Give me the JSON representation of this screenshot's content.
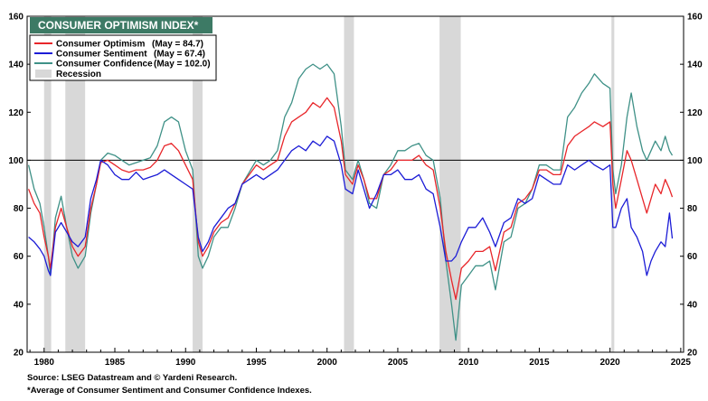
{
  "title": "CONSUMER OPTIMISM INDEX*",
  "footer": {
    "source": "Source: LSEG Datastream and © Yardeni Research.",
    "note": "*Average of Consumer Sentiment and Consumer Confidence Indexes."
  },
  "colors": {
    "title_bg": "#3d7a65",
    "optimism": "#e8262a",
    "sentiment": "#1c1cd6",
    "confidence": "#3f9187",
    "recession": "#d8d8d8",
    "reference_line": "#000000"
  },
  "chart_data": {
    "type": "line",
    "title": "CONSUMER OPTIMISM INDEX*",
    "xlim": [
      1978.8,
      2025.2
    ],
    "ylim": [
      20,
      160
    ],
    "x_ticks": [
      1980,
      1985,
      1990,
      1995,
      2000,
      2005,
      2010,
      2015,
      2020,
      2025
    ],
    "y_ticks": [
      20,
      40,
      60,
      80,
      100,
      120,
      140,
      160
    ],
    "reference_line_y": 100,
    "grid": false,
    "legend_position": "top-left",
    "recessions": [
      [
        1980.0,
        1980.5
      ],
      [
        1981.5,
        1982.9
      ],
      [
        1990.5,
        1991.2
      ],
      [
        2001.2,
        2001.9
      ],
      [
        2007.95,
        2009.45
      ],
      [
        2020.1,
        2020.3
      ]
    ],
    "legend": [
      {
        "label": "Consumer Optimism",
        "value": "(May = 84.7)",
        "color": "#e8262a"
      },
      {
        "label": "Consumer Sentiment",
        "value": "(May = 67.4)",
        "color": "#1c1cd6"
      },
      {
        "label": "Consumer Confidence",
        "value": "(May = 102.0)",
        "color": "#3f9187"
      },
      {
        "label": "Recession",
        "value": "",
        "color": "#d8d8d8"
      }
    ],
    "series": [
      {
        "name": "Consumer Confidence",
        "color": "#3f9187",
        "x": [
          1978.9,
          1979.3,
          1979.7,
          1980.0,
          1980.3,
          1980.45,
          1980.8,
          1981.2,
          1981.6,
          1982.0,
          1982.4,
          1982.9,
          1983.3,
          1983.7,
          1984.0,
          1984.5,
          1985.0,
          1985.5,
          1986.0,
          1986.5,
          1987.0,
          1987.5,
          1988.0,
          1988.5,
          1989.0,
          1989.5,
          1990.0,
          1990.5,
          1990.9,
          1991.2,
          1991.6,
          1992.0,
          1992.5,
          1993.0,
          1993.5,
          1994.0,
          1994.5,
          1995.0,
          1995.5,
          1996.0,
          1996.5,
          1997.0,
          1997.5,
          1998.0,
          1998.5,
          1999.0,
          1999.5,
          2000.0,
          2000.5,
          2001.0,
          2001.3,
          2001.8,
          2002.2,
          2002.6,
          2003.0,
          2003.5,
          2004.0,
          2004.5,
          2005.0,
          2005.5,
          2006.0,
          2006.5,
          2007.0,
          2007.5,
          2008.0,
          2008.4,
          2008.8,
          2009.1,
          2009.5,
          2010.0,
          2010.5,
          2011.0,
          2011.5,
          2011.9,
          2012.5,
          2013.0,
          2013.5,
          2014.0,
          2014.5,
          2015.0,
          2015.5,
          2016.0,
          2016.5,
          2017.0,
          2017.5,
          2018.0,
          2018.5,
          2018.9,
          2019.5,
          2020.0,
          2020.2,
          2020.4,
          2020.8,
          2021.2,
          2021.5,
          2021.9,
          2022.3,
          2022.6,
          2022.9,
          2023.2,
          2023.6,
          2023.9,
          2024.2,
          2024.4
        ],
        "values": [
          98,
          88,
          82,
          72,
          60,
          52,
          76,
          85,
          72,
          60,
          55,
          60,
          78,
          90,
          100,
          103,
          102,
          100,
          98,
          99,
          100,
          101,
          106,
          116,
          118,
          116,
          104,
          96,
          60,
          55,
          60,
          68,
          72,
          72,
          80,
          90,
          95,
          100,
          98,
          100,
          104,
          118,
          124,
          134,
          138,
          140,
          138,
          140,
          136,
          114,
          96,
          92,
          100,
          92,
          82,
          80,
          94,
          98,
          104,
          104,
          106,
          107,
          102,
          100,
          84,
          58,
          40,
          25,
          48,
          52,
          56,
          56,
          58,
          46,
          66,
          68,
          80,
          82,
          88,
          98,
          98,
          96,
          96,
          118,
          122,
          128,
          132,
          136,
          132,
          130,
          96,
          86,
          98,
          118,
          128,
          114,
          104,
          100,
          104,
          108,
          104,
          110,
          104,
          102
        ]
      },
      {
        "name": "Consumer Optimism",
        "color": "#e8262a",
        "x": [
          1978.9,
          1979.3,
          1979.7,
          1980.0,
          1980.3,
          1980.45,
          1980.8,
          1981.2,
          1981.6,
          1982.0,
          1982.4,
          1982.9,
          1983.3,
          1983.7,
          1984.0,
          1984.5,
          1985.0,
          1985.5,
          1986.0,
          1986.5,
          1987.0,
          1987.5,
          1988.0,
          1988.5,
          1989.0,
          1989.5,
          1990.0,
          1990.5,
          1990.9,
          1991.2,
          1991.6,
          1992.0,
          1992.5,
          1993.0,
          1993.5,
          1994.0,
          1994.5,
          1995.0,
          1995.5,
          1996.0,
          1996.5,
          1997.0,
          1997.5,
          1998.0,
          1998.5,
          1999.0,
          1999.5,
          2000.0,
          2000.5,
          2001.0,
          2001.3,
          2001.8,
          2002.2,
          2002.6,
          2003.0,
          2003.5,
          2004.0,
          2004.5,
          2005.0,
          2005.5,
          2006.0,
          2006.5,
          2007.0,
          2007.5,
          2008.0,
          2008.4,
          2008.8,
          2009.1,
          2009.5,
          2010.0,
          2010.5,
          2011.0,
          2011.5,
          2011.9,
          2012.5,
          2013.0,
          2013.5,
          2014.0,
          2014.5,
          2015.0,
          2015.5,
          2016.0,
          2016.5,
          2017.0,
          2017.5,
          2018.0,
          2018.5,
          2018.9,
          2019.5,
          2020.0,
          2020.2,
          2020.4,
          2020.8,
          2021.2,
          2021.5,
          2021.9,
          2022.3,
          2022.6,
          2022.9,
          2023.2,
          2023.6,
          2023.9,
          2024.2,
          2024.4
        ],
        "values": [
          88,
          82,
          78,
          68,
          60,
          55,
          72,
          80,
          72,
          64,
          60,
          64,
          80,
          90,
          99,
          100,
          98,
          96,
          95,
          96,
          96,
          97,
          100,
          106,
          107,
          104,
          98,
          92,
          66,
          60,
          64,
          70,
          74,
          76,
          82,
          90,
          94,
          98,
          96,
          98,
          100,
          110,
          116,
          118,
          120,
          124,
          122,
          126,
          122,
          108,
          94,
          90,
          98,
          92,
          84,
          84,
          94,
          96,
          100,
          100,
          100,
          102,
          98,
          96,
          80,
          62,
          50,
          42,
          55,
          58,
          62,
          62,
          64,
          54,
          70,
          72,
          82,
          84,
          88,
          96,
          96,
          94,
          94,
          106,
          110,
          112,
          114,
          116,
          114,
          116,
          90,
          80,
          92,
          104,
          100,
          92,
          84,
          78,
          84,
          90,
          86,
          92,
          88,
          84.7
        ]
      },
      {
        "name": "Consumer Sentiment",
        "color": "#1c1cd6",
        "x": [
          1978.9,
          1979.3,
          1979.7,
          1980.0,
          1980.3,
          1980.45,
          1980.8,
          1981.2,
          1981.6,
          1982.0,
          1982.4,
          1982.9,
          1983.3,
          1983.7,
          1984.0,
          1984.5,
          1985.0,
          1985.5,
          1986.0,
          1986.5,
          1987.0,
          1987.5,
          1988.0,
          1988.5,
          1989.0,
          1989.5,
          1990.0,
          1990.5,
          1990.9,
          1991.2,
          1991.6,
          1992.0,
          1992.5,
          1993.0,
          1993.5,
          1994.0,
          1994.5,
          1995.0,
          1995.5,
          1996.0,
          1996.5,
          1997.0,
          1997.5,
          1998.0,
          1998.5,
          1999.0,
          1999.5,
          2000.0,
          2000.5,
          2001.0,
          2001.3,
          2001.8,
          2002.2,
          2002.6,
          2003.0,
          2003.5,
          2004.0,
          2004.5,
          2005.0,
          2005.5,
          2006.0,
          2006.5,
          2007.0,
          2007.5,
          2008.0,
          2008.4,
          2008.8,
          2009.1,
          2009.5,
          2010.0,
          2010.5,
          2011.0,
          2011.5,
          2011.9,
          2012.5,
          2013.0,
          2013.5,
          2014.0,
          2014.5,
          2015.0,
          2015.5,
          2016.0,
          2016.5,
          2017.0,
          2017.5,
          2018.0,
          2018.5,
          2018.9,
          2019.5,
          2020.0,
          2020.2,
          2020.4,
          2020.8,
          2021.2,
          2021.5,
          2021.9,
          2022.3,
          2022.6,
          2022.9,
          2023.2,
          2023.6,
          2023.9,
          2024.2,
          2024.4
        ],
        "values": [
          68,
          66,
          63,
          60,
          54,
          52,
          70,
          74,
          70,
          66,
          64,
          68,
          84,
          92,
          100,
          98,
          94,
          92,
          92,
          95,
          92,
          93,
          94,
          96,
          94,
          92,
          90,
          88,
          68,
          62,
          66,
          72,
          76,
          80,
          82,
          90,
          92,
          94,
          92,
          94,
          96,
          100,
          104,
          106,
          104,
          108,
          106,
          110,
          108,
          98,
          88,
          86,
          96,
          88,
          80,
          86,
          94,
          94,
          96,
          92,
          92,
          94,
          88,
          86,
          72,
          58,
          58,
          60,
          66,
          72,
          72,
          76,
          70,
          64,
          74,
          76,
          84,
          82,
          84,
          94,
          92,
          90,
          90,
          98,
          96,
          98,
          100,
          98,
          96,
          98,
          72,
          72,
          80,
          84,
          72,
          68,
          62,
          52,
          58,
          62,
          66,
          64,
          78,
          67.4
        ]
      }
    ]
  }
}
